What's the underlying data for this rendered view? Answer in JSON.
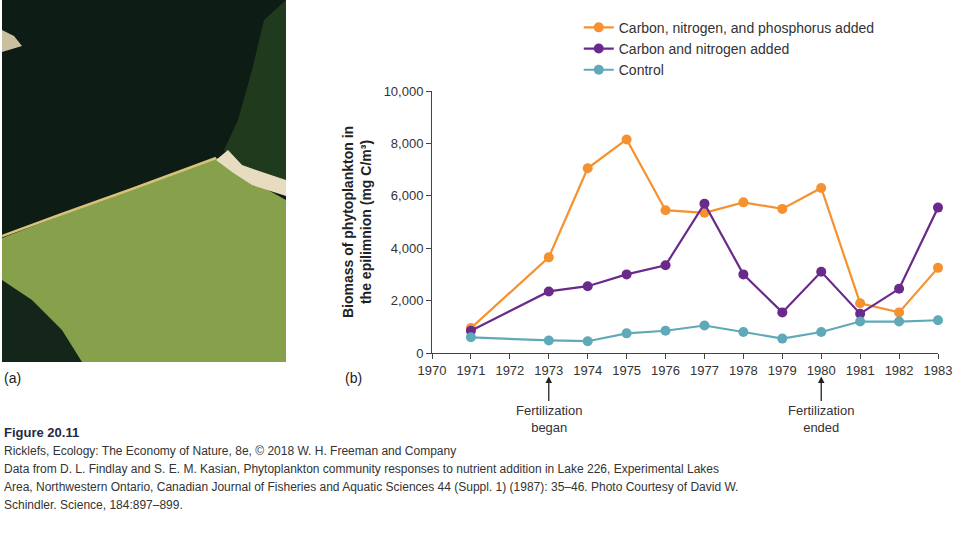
{
  "photo": {
    "label": "(a)"
  },
  "chart_label": "(b)",
  "caption": {
    "figure": "Figure 20.11",
    "lines": [
      "Ricklefs, Ecology: The Economy of Nature, 8e, © 2018 W. H. Freeman and Company",
      "Data from D. L. Findlay and S. E. M. Kasian, Phytoplankton community responses to nutrient addition in Lake 226, Experimental Lakes",
      "Area, Northwestern Ontario, Canadian Journal of Fisheries and Aquatic Sciences 44 (Suppl. 1) (1987): 35–46. Photo Courtesy of David W.",
      "Schindler. Science, 184:897–899."
    ]
  },
  "chart_data": {
    "type": "line",
    "marker": "circle",
    "y_label": "Biomass of phytoplankton in the epilimnion (mg C/m³)",
    "x": [
      1971,
      1973,
      1974,
      1975,
      1976,
      1977,
      1978,
      1979,
      1980,
      1981,
      1982,
      1983
    ],
    "series": [
      {
        "name": "Carbon, nitrogen, and phosphorus added",
        "color": "#f5922f",
        "values": [
          950,
          3650,
          7050,
          8150,
          5450,
          5350,
          5750,
          5500,
          6300,
          1900,
          1550,
          3250
        ]
      },
      {
        "name": "Carbon and nitrogen added",
        "color": "#6a2a8c",
        "values": [
          850,
          2350,
          2550,
          3000,
          3350,
          5700,
          3000,
          1550,
          3100,
          1500,
          2450,
          5550
        ]
      },
      {
        "name": "Control",
        "color": "#5fa9b8",
        "values": [
          600,
          480,
          450,
          750,
          850,
          1050,
          800,
          550,
          800,
          1200,
          1200,
          1250
        ]
      }
    ],
    "xlim": [
      1970,
      1983
    ],
    "xticks": [
      1970,
      1971,
      1972,
      1973,
      1974,
      1975,
      1976,
      1977,
      1978,
      1979,
      1980,
      1981,
      1982,
      1983
    ],
    "ylim": [
      0,
      10000
    ],
    "yticks": [
      0,
      {
        "value": 2000,
        "label": "2,000"
      },
      {
        "value": 4000,
        "label": "4,000"
      },
      {
        "value": 6000,
        "label": "6,000"
      },
      {
        "value": 8000,
        "label": "8,000"
      },
      {
        "value": 10000,
        "label": "10,000"
      }
    ],
    "annotations": [
      {
        "x": 1973,
        "text": "Fertilization began"
      },
      {
        "x": 1980,
        "text": "Fertilization ended"
      }
    ],
    "grid": false,
    "legend": "top right"
  }
}
